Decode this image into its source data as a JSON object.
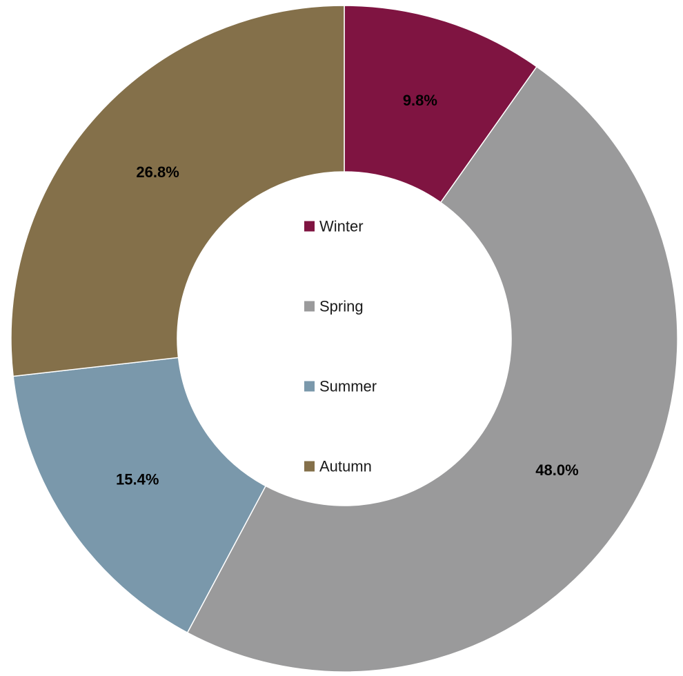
{
  "chart_data": {
    "type": "pie",
    "donut": true,
    "categories": [
      "Winter",
      "Spring",
      "Summer",
      "Autumn"
    ],
    "values": [
      9.8,
      48.0,
      15.4,
      26.8
    ],
    "labels": [
      "9.8%",
      "48.0%",
      "15.4%",
      "26.8%"
    ],
    "colors": [
      "#7f1441",
      "#9a9a9b",
      "#7a98ab",
      "#84704a"
    ],
    "legend": {
      "placement": "center",
      "entries": [
        "Winter",
        "Spring",
        "Summer",
        "Autumn"
      ]
    },
    "start_angle": "12 o'clock",
    "direction": "clockwise"
  }
}
